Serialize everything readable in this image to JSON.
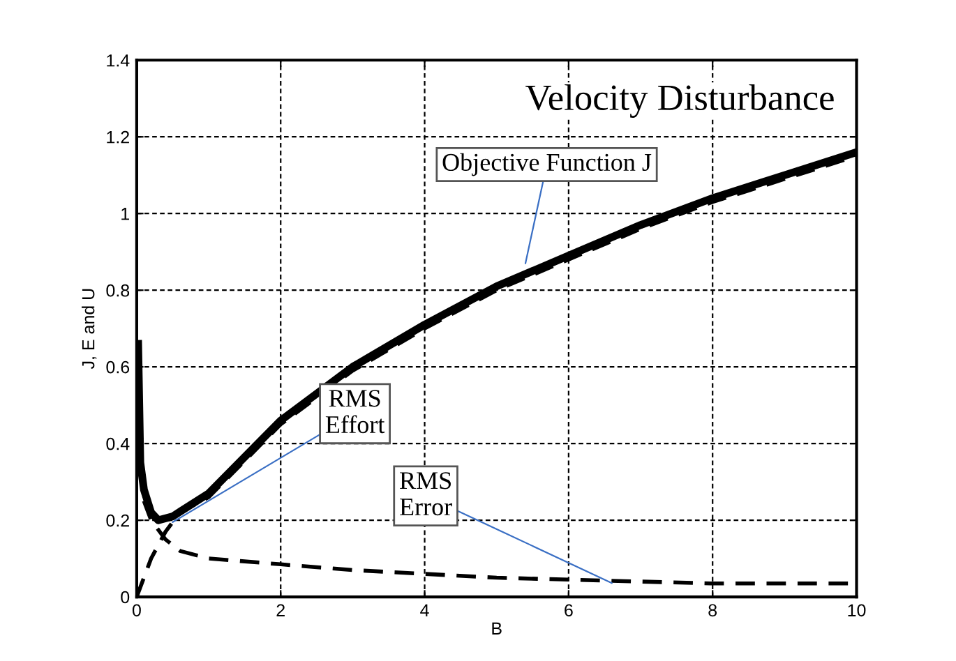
{
  "chart_data": {
    "type": "line",
    "title": "Velocity Disturbance",
    "xlabel": "B",
    "ylabel": "J, E and U",
    "xlim": [
      0,
      10
    ],
    "xticks": [
      0,
      2,
      4,
      6,
      8,
      10
    ],
    "ylim": [
      0,
      1.4
    ],
    "yticks": [
      0,
      0.2,
      0.4,
      0.6,
      0.8,
      1,
      1.2,
      1.4
    ],
    "grid": true,
    "marker": "none",
    "series": [
      {
        "color": "#000000",
        "line_style": "solid",
        "x": [
          0.02,
          0.05,
          0.1,
          0.2,
          0.3,
          0.5,
          1,
          2,
          3,
          4,
          5,
          6,
          7,
          8,
          9,
          10
        ],
        "values": [
          0.66,
          0.35,
          0.28,
          0.22,
          0.2,
          0.21,
          0.27,
          0.46,
          0.6,
          0.71,
          0.81,
          0.89,
          0.97,
          1.04,
          1.1,
          1.16
        ]
      },
      {
        "color": "#000000",
        "line_style": "dashed",
        "x": [
          0,
          0.2,
          0.4,
          0.6,
          1,
          2,
          3,
          4,
          5,
          6,
          7,
          8,
          9,
          10
        ],
        "values": [
          0,
          0.1,
          0.17,
          0.22,
          0.26,
          0.45,
          0.59,
          0.7,
          0.8,
          0.88,
          0.96,
          1.03,
          1.09,
          1.15
        ]
      },
      {
        "color": "#000000",
        "line_style": "dashed",
        "x": [
          0.1,
          0.2,
          0.4,
          0.6,
          1,
          2,
          3,
          4,
          5,
          6,
          7,
          8,
          10
        ],
        "values": [
          0.25,
          0.2,
          0.15,
          0.12,
          0.1,
          0.085,
          0.07,
          0.06,
          0.05,
          0.045,
          0.04,
          0.035,
          0.035
        ]
      }
    ],
    "annotations": [
      {
        "text": "Objective Function J",
        "x": 5.4,
        "y": 0.87
      },
      {
        "text": "RMS\nEffort",
        "x": 0.5,
        "y": 0.195
      },
      {
        "text": "RMS\nError",
        "x": 6.6,
        "y": 0.036
      }
    ]
  }
}
